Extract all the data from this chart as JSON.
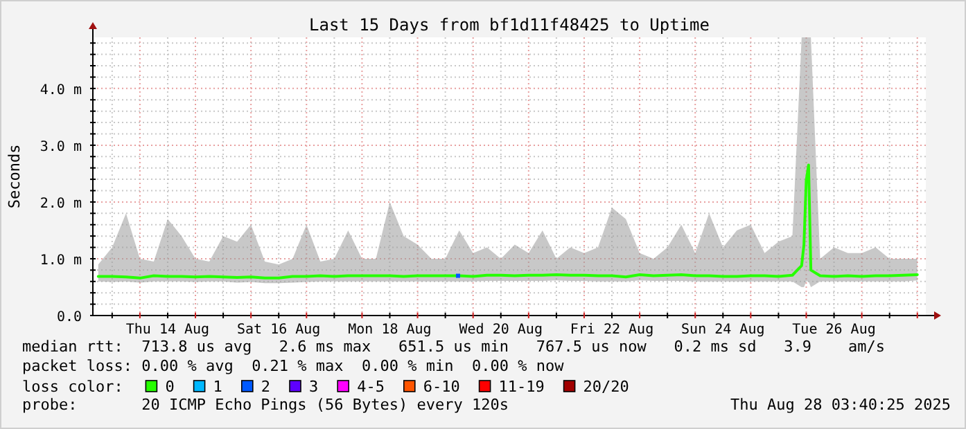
{
  "chart_data": {
    "type": "line",
    "title": "Last 15 Days from bf1d11f48425 to Uptime",
    "ylabel": "Seconds",
    "xlim": [
      "2025-08-13T03:40",
      "2025-08-28T03:40"
    ],
    "ylim": [
      0,
      4.9
    ],
    "yticks": [
      {
        "value": 0,
        "label": "0.0"
      },
      {
        "value": 0.2,
        "label": null
      },
      {
        "value": 0.4,
        "label": null
      },
      {
        "value": 0.6,
        "label": null
      },
      {
        "value": 0.8,
        "label": null
      },
      {
        "value": 1,
        "label": "1.0 m"
      },
      {
        "value": 1.2,
        "label": null
      },
      {
        "value": 1.4,
        "label": null
      },
      {
        "value": 1.6,
        "label": null
      },
      {
        "value": 1.8,
        "label": null
      },
      {
        "value": 2,
        "label": "2.0 m"
      },
      {
        "value": 2.2,
        "label": null
      },
      {
        "value": 2.4,
        "label": null
      },
      {
        "value": 2.6,
        "label": null
      },
      {
        "value": 2.8,
        "label": null
      },
      {
        "value": 3,
        "label": "3.0 m"
      },
      {
        "value": 3.2,
        "label": null
      },
      {
        "value": 3.4,
        "label": null
      },
      {
        "value": 3.6,
        "label": null
      },
      {
        "value": 3.8,
        "label": null
      },
      {
        "value": 4,
        "label": "4.0 m"
      },
      {
        "value": 4.2,
        "label": null
      },
      {
        "value": 4.4,
        "label": null
      },
      {
        "value": 4.6,
        "label": null
      },
      {
        "value": 4.8,
        "label": null
      }
    ],
    "xticks": [
      {
        "value": "2025-08-13T12:00",
        "label": null
      },
      {
        "value": "2025-08-14T00:00",
        "label": null
      },
      {
        "value": "2025-08-14T12:00",
        "label": "Thu 14 Aug"
      },
      {
        "value": "2025-08-15T00:00",
        "label": null
      },
      {
        "value": "2025-08-15T12:00",
        "label": null
      },
      {
        "value": "2025-08-16T00:00",
        "label": null
      },
      {
        "value": "2025-08-16T12:00",
        "label": "Sat 16 Aug"
      },
      {
        "value": "2025-08-17T00:00",
        "label": null
      },
      {
        "value": "2025-08-17T12:00",
        "label": null
      },
      {
        "value": "2025-08-18T00:00",
        "label": null
      },
      {
        "value": "2025-08-18T12:00",
        "label": "Mon 18 Aug"
      },
      {
        "value": "2025-08-19T00:00",
        "label": null
      },
      {
        "value": "2025-08-19T12:00",
        "label": null
      },
      {
        "value": "2025-08-20T00:00",
        "label": null
      },
      {
        "value": "2025-08-20T12:00",
        "label": "Wed 20 Aug"
      },
      {
        "value": "2025-08-21T00:00",
        "label": null
      },
      {
        "value": "2025-08-21T12:00",
        "label": null
      },
      {
        "value": "2025-08-22T00:00",
        "label": null
      },
      {
        "value": "2025-08-22T12:00",
        "label": "Fri 22 Aug"
      },
      {
        "value": "2025-08-23T00:00",
        "label": null
      },
      {
        "value": "2025-08-23T12:00",
        "label": null
      },
      {
        "value": "2025-08-24T00:00",
        "label": null
      },
      {
        "value": "2025-08-24T12:00",
        "label": "Sun 24 Aug"
      },
      {
        "value": "2025-08-25T00:00",
        "label": null
      },
      {
        "value": "2025-08-25T12:00",
        "label": null
      },
      {
        "value": "2025-08-26T00:00",
        "label": null
      },
      {
        "value": "2025-08-26T12:00",
        "label": "Tue 26 Aug"
      },
      {
        "value": "2025-08-27T00:00",
        "label": null
      },
      {
        "value": "2025-08-27T12:00",
        "label": null
      },
      {
        "value": "2025-08-28T00:00",
        "label": null
      }
    ],
    "grid": true,
    "legend": "bottom",
    "legend_title": "loss color:",
    "series": [
      {
        "name": "0",
        "color": "#26ff00",
        "x": [
          "2025-08-13T06:00",
          "2025-08-13T12:00",
          "2025-08-13T18:00",
          "2025-08-14T00:00",
          "2025-08-14T06:00",
          "2025-08-14T12:00",
          "2025-08-14T18:00",
          "2025-08-15T00:00",
          "2025-08-15T06:00",
          "2025-08-15T12:00",
          "2025-08-15T18:00",
          "2025-08-16T00:00",
          "2025-08-16T06:00",
          "2025-08-16T12:00",
          "2025-08-16T18:00",
          "2025-08-17T00:00",
          "2025-08-17T06:00",
          "2025-08-17T12:00",
          "2025-08-17T18:00",
          "2025-08-18T00:00",
          "2025-08-18T06:00",
          "2025-08-18T12:00",
          "2025-08-18T18:00",
          "2025-08-19T00:00",
          "2025-08-19T06:00",
          "2025-08-19T12:00",
          "2025-08-19T18:00",
          "2025-08-20T00:00",
          "2025-08-20T06:00",
          "2025-08-20T12:00",
          "2025-08-20T18:00",
          "2025-08-21T00:00",
          "2025-08-21T06:00",
          "2025-08-21T12:00",
          "2025-08-21T18:00",
          "2025-08-22T00:00",
          "2025-08-22T06:00",
          "2025-08-22T12:00",
          "2025-08-22T18:00",
          "2025-08-23T00:00",
          "2025-08-23T06:00",
          "2025-08-23T12:00",
          "2025-08-23T18:00",
          "2025-08-24T00:00",
          "2025-08-24T06:00",
          "2025-08-24T12:00",
          "2025-08-24T18:00",
          "2025-08-25T00:00",
          "2025-08-25T06:00",
          "2025-08-25T12:00",
          "2025-08-25T18:00",
          "2025-08-25T22:00",
          "2025-08-25T23:00",
          "2025-08-26T00:00",
          "2025-08-26T01:00",
          "2025-08-26T02:00",
          "2025-08-26T06:00",
          "2025-08-26T12:00",
          "2025-08-26T18:00",
          "2025-08-27T00:00",
          "2025-08-27T06:00",
          "2025-08-27T12:00",
          "2025-08-27T18:00",
          "2025-08-28T00:00"
        ],
        "values": [
          0.69,
          0.69,
          0.68,
          0.66,
          0.7,
          0.69,
          0.69,
          0.68,
          0.69,
          0.68,
          0.67,
          0.68,
          0.66,
          0.66,
          0.69,
          0.69,
          0.7,
          0.69,
          0.7,
          0.7,
          0.7,
          0.7,
          0.69,
          0.7,
          0.7,
          0.7,
          0.7,
          0.69,
          0.71,
          0.71,
          0.7,
          0.71,
          0.71,
          0.72,
          0.71,
          0.71,
          0.7,
          0.7,
          0.68,
          0.72,
          0.7,
          0.71,
          0.72,
          0.7,
          0.7,
          0.69,
          0.69,
          0.7,
          0.7,
          0.69,
          0.71,
          0.88,
          1.25,
          2.38,
          2.65,
          0.8,
          0.7,
          0.69,
          0.7,
          0.69,
          0.7,
          0.7,
          0.71,
          0.72
        ],
        "lower": [
          0.6,
          0.59,
          0.6,
          0.58,
          0.6,
          0.6,
          0.6,
          0.59,
          0.6,
          0.6,
          0.58,
          0.59,
          0.57,
          0.57,
          0.58,
          0.59,
          0.6,
          0.6,
          0.6,
          0.6,
          0.6,
          0.6,
          0.6,
          0.6,
          0.6,
          0.6,
          0.6,
          0.6,
          0.61,
          0.61,
          0.61,
          0.61,
          0.61,
          0.62,
          0.61,
          0.61,
          0.6,
          0.6,
          0.6,
          0.62,
          0.61,
          0.61,
          0.61,
          0.6,
          0.6,
          0.6,
          0.6,
          0.6,
          0.6,
          0.6,
          0.6,
          0.5,
          0.5,
          0.6,
          0.6,
          0.5,
          0.6,
          0.6,
          0.6,
          0.6,
          0.6,
          0.6,
          0.6,
          0.62
        ],
        "upper": [
          0.9,
          1.2,
          1.8,
          1,
          0.95,
          1.7,
          1.4,
          1,
          0.95,
          1.4,
          1.3,
          1.6,
          0.95,
          0.9,
          1,
          1.6,
          0.95,
          1,
          1.5,
          1,
          1,
          2,
          1.4,
          1.25,
          1,
          1,
          1.5,
          1.1,
          1.2,
          1,
          1.25,
          1.1,
          1.5,
          1,
          1.2,
          1.1,
          1.2,
          1.9,
          1.7,
          1.1,
          1,
          1.2,
          1.6,
          1.1,
          1.8,
          1.2,
          1.5,
          1.6,
          1.1,
          1.3,
          1.4,
          4.9,
          4.9,
          4.9,
          4.9,
          4.9,
          1,
          1.2,
          1.1,
          1.1,
          1.2,
          1,
          1,
          1
        ]
      },
      {
        "name": "1",
        "color": "#00b8ff"
      },
      {
        "name": "2",
        "color": "#0059ff",
        "type": "scatter",
        "x": [
          "2025-08-19T17:30"
        ],
        "values": [
          0.7
        ]
      },
      {
        "name": "3",
        "color": "#5e00ff"
      },
      {
        "name": "4-5",
        "color": "#ff00ff"
      },
      {
        "name": "6-10",
        "color": "#ff5500"
      },
      {
        "name": "11-19",
        "color": "#ff0000"
      },
      {
        "name": "20/20",
        "color": "#a10000"
      }
    ],
    "annotations": [
      "median rtt:  713.8 us avg   2.6 ms max   651.5 us min   767.5 us now   0.2 ms sd   3.9    am/s",
      "packet loss: 0.00 % avg  0.21 % max  0.00 % min  0.00 % now",
      "probe:       20 ICMP Echo Pings (56 Bytes) every 120s",
      "Thu Aug 28 03:40:25 2025"
    ]
  }
}
